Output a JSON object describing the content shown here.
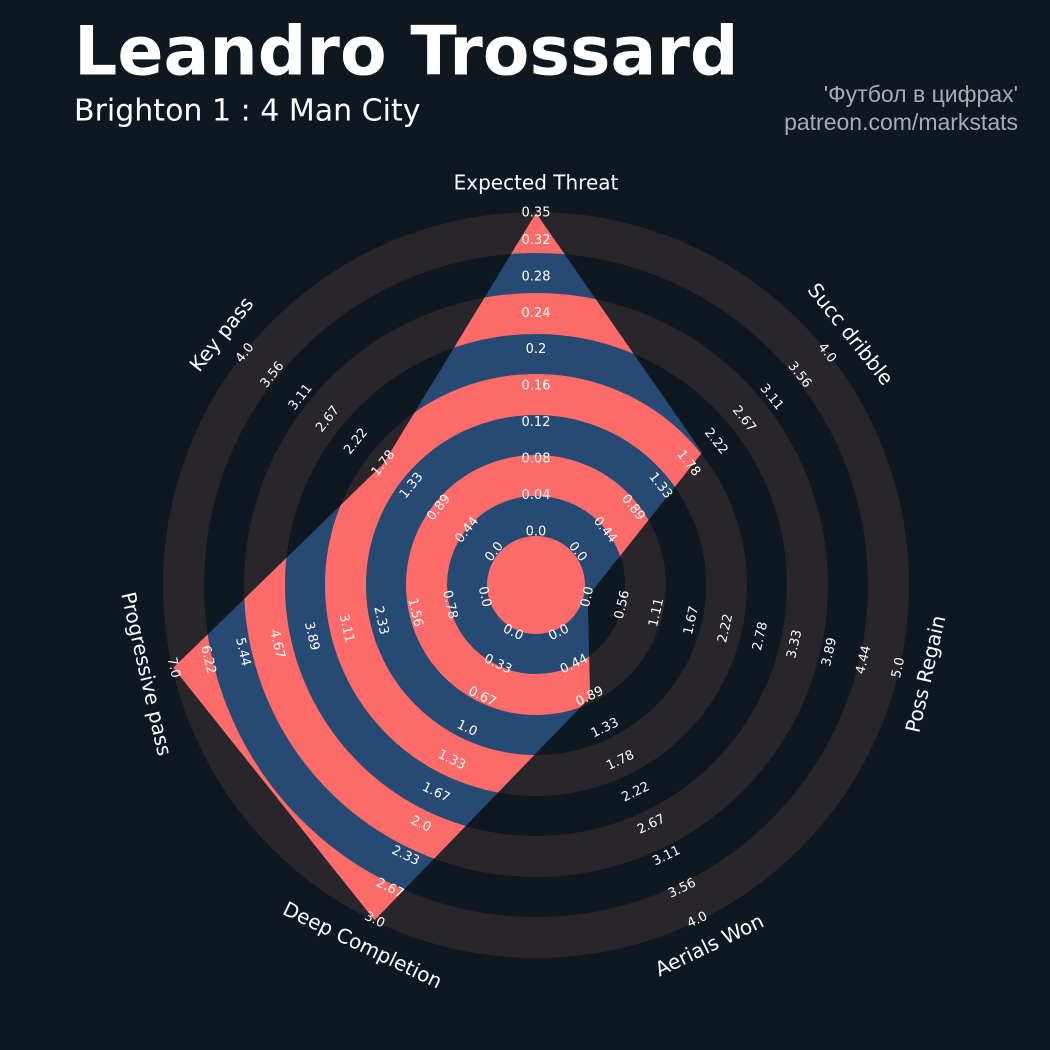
{
  "chart_data": {
    "type": "radar",
    "title": "Leandro Trossard",
    "subtitle": "Brighton 1 : 4 Man City",
    "credits": [
      "'Футбол в цифрах'",
      "patreon.com/markstats"
    ],
    "categories": [
      "Expected Threat",
      "Succ dribble",
      "Poss Regain",
      "Aerials Won",
      "Deep Completion",
      "Progressive pass",
      "Key pass"
    ],
    "values": [
      0.35,
      2.0,
      0,
      0.9,
      3.0,
      7.0,
      1.78
    ],
    "rlims": [
      [
        0,
        0.35
      ],
      [
        0,
        4
      ],
      [
        0,
        5
      ],
      [
        0,
        4
      ],
      [
        0,
        3
      ],
      [
        0,
        7
      ],
      [
        0,
        4
      ]
    ],
    "axis_ticks": [
      [
        {
          "value": 0,
          "label": "0.0"
        },
        0.04,
        0.08,
        0.12,
        0.16,
        0.2,
        0.24,
        0.28,
        0.32,
        0.35
      ],
      [
        {
          "value": 0,
          "label": "0.0"
        },
        0.44,
        0.89,
        1.33,
        1.78,
        2.22,
        2.67,
        3.11,
        3.56,
        {
          "value": 4,
          "label": "4.0"
        }
      ],
      [
        {
          "value": 0,
          "label": "0.0"
        },
        0.56,
        1.11,
        1.67,
        2.22,
        2.78,
        3.33,
        3.89,
        4.44,
        {
          "value": 5,
          "label": "5.0"
        }
      ],
      [
        {
          "value": 0,
          "label": "0.0"
        },
        0.44,
        0.89,
        1.33,
        1.78,
        2.22,
        2.67,
        3.11,
        3.56,
        {
          "value": 4,
          "label": "4.0"
        }
      ],
      [
        {
          "value": 0,
          "label": "0.0"
        },
        0.33,
        0.67,
        {
          "value": 1,
          "label": "1.0"
        },
        1.33,
        1.67,
        {
          "value": 2,
          "label": "2.0"
        },
        2.33,
        2.67,
        {
          "value": 3,
          "label": "3.0"
        }
      ],
      [
        {
          "value": 0,
          "label": "0.0"
        },
        0.78,
        1.56,
        2.33,
        3.11,
        3.89,
        4.67,
        5.44,
        6.22,
        {
          "value": 7,
          "label": "7.0"
        }
      ],
      [
        {
          "value": 0,
          "label": "0.0"
        },
        0.44,
        0.89,
        1.33,
        1.78,
        2.22,
        2.67,
        3.11,
        3.56,
        {
          "value": 4,
          "label": "4.0"
        }
      ]
    ],
    "polygon_color": "#274a74",
    "ring_highlight_color": "#ff6b68",
    "ring_color": "#28252b"
  }
}
